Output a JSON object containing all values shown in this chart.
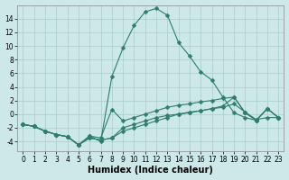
{
  "x": [
    0,
    1,
    2,
    3,
    4,
    5,
    6,
    7,
    8,
    9,
    10,
    11,
    12,
    13,
    14,
    15,
    16,
    17,
    18,
    19,
    20,
    21,
    22,
    23
  ],
  "series": [
    {
      "y": [
        -1.5,
        -1.8,
        -2.5,
        -3.0,
        -3.3,
        -4.5,
        -3.5,
        -3.8,
        -3.5,
        -2.5,
        -2.0,
        -1.5,
        -1.0,
        -0.5,
        0.0,
        0.3,
        0.5,
        0.8,
        1.0,
        1.5,
        0.3,
        -0.8,
        -0.5,
        -0.5
      ],
      "marker": true
    },
    {
      "y": [
        -1.5,
        -1.8,
        -2.5,
        -3.0,
        -3.3,
        -4.5,
        -3.5,
        -3.8,
        -3.5,
        -2.0,
        -1.5,
        -1.0,
        -0.5,
        -0.2,
        0.0,
        0.2,
        0.5,
        0.8,
        1.2,
        2.5,
        0.2,
        -0.9,
        0.8,
        -0.5
      ],
      "marker": true
    },
    {
      "y": [
        -1.5,
        -1.8,
        -2.5,
        -3.0,
        -3.3,
        -4.5,
        -3.2,
        -3.5,
        0.7,
        -1.0,
        -0.5,
        0.0,
        0.5,
        1.0,
        1.3,
        1.5,
        1.8,
        2.0,
        2.3,
        2.5,
        0.2,
        -0.9,
        0.8,
        -0.5
      ],
      "marker": true
    },
    {
      "y": [
        -1.5,
        -1.8,
        -2.5,
        -3.0,
        -3.3,
        -4.5,
        -3.2,
        -4.0,
        5.5,
        9.7,
        13.0,
        15.0,
        15.5,
        14.5,
        10.5,
        8.5,
        6.2,
        5.0,
        2.5,
        0.2,
        -0.5,
        -0.9,
        0.8,
        -0.5
      ],
      "marker": true
    }
  ],
  "line_color": "#2e7d6e",
  "bg_color": "#cce8e8",
  "grid_color": "#aacccc",
  "xlabel": "Humidex (Indice chaleur)",
  "ylim": [
    -5.5,
    16
  ],
  "xlim": [
    -0.5,
    23.5
  ],
  "yticks": [
    -4,
    -2,
    0,
    2,
    4,
    6,
    8,
    10,
    12,
    14
  ],
  "xticks": [
    0,
    1,
    2,
    3,
    4,
    5,
    6,
    7,
    8,
    9,
    10,
    11,
    12,
    13,
    14,
    15,
    16,
    17,
    18,
    19,
    20,
    21,
    22,
    23
  ],
  "marker": "D",
  "markersize": 2.5,
  "linewidth": 0.8,
  "xlabel_fontsize": 7,
  "tick_fontsize": 5.5
}
